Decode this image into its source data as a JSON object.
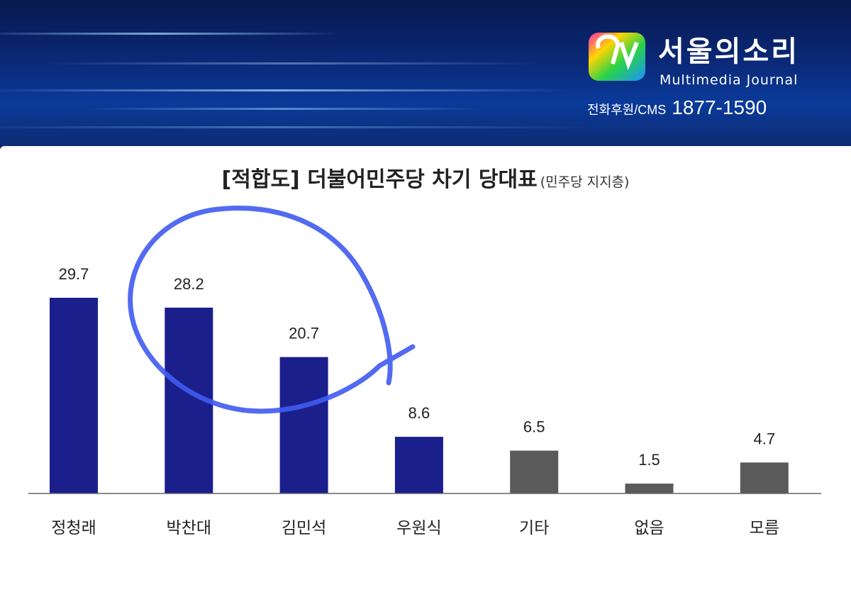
{
  "header": {
    "brand_name": "서울의소리",
    "brand_subtitle": "Multimedia Journal",
    "phone_label": "전화후원/CMS",
    "phone_number": "1877-1590"
  },
  "chart_data": {
    "type": "bar",
    "title": "[적합도] 더불어민주당 차기 당대표",
    "subtitle": "(민주당 지지층)",
    "categories": [
      "정청래",
      "박찬대",
      "김민석",
      "우원식",
      "기타",
      "없음",
      "모름"
    ],
    "values": [
      29.7,
      28.2,
      20.7,
      8.6,
      6.5,
      1.5,
      4.7
    ],
    "value_labels": [
      "29.7",
      "28.2",
      "20.7",
      "8.6",
      "6.5",
      "1.5",
      "4.7"
    ],
    "colors": [
      "#1a1f8c",
      "#1a1f8c",
      "#1a1f8c",
      "#1a1f8c",
      "#5a5a5a",
      "#5a5a5a",
      "#5a5a5a"
    ],
    "ylim": [
      0,
      29.7
    ],
    "grid": false,
    "legend": "none",
    "xlabel": "",
    "ylabel": ""
  },
  "annotation": {
    "type": "hand-drawn circle",
    "color": "#3f5bf0",
    "encircles": [
      "박찬대",
      "김민석"
    ]
  }
}
